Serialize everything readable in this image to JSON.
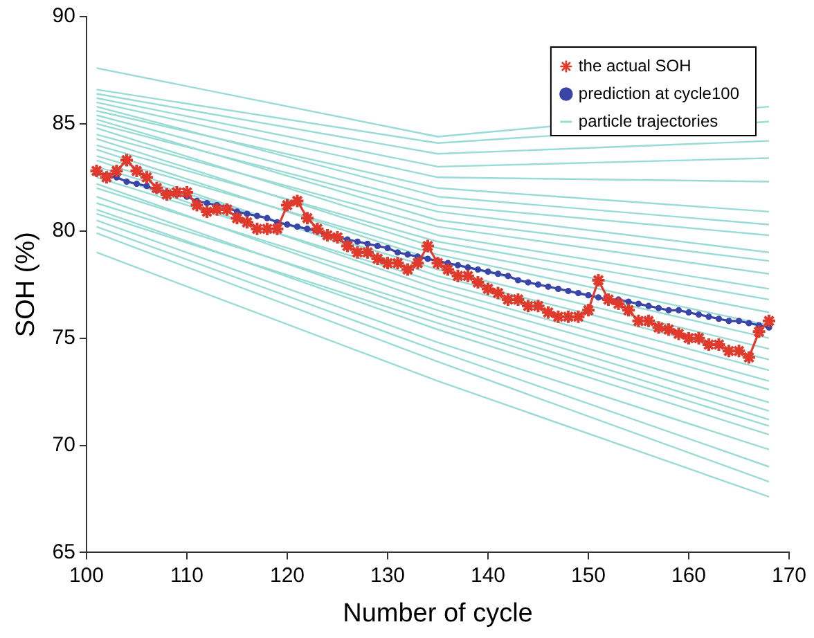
{
  "chart_data": {
    "type": "line",
    "xlabel": "Number of cycle",
    "ylabel": "SOH (%)",
    "xlim": [
      100,
      170
    ],
    "xticks": [
      100,
      110,
      120,
      130,
      140,
      150,
      160,
      170
    ],
    "ylim": [
      65,
      90
    ],
    "yticks": [
      65,
      70,
      75,
      80,
      85,
      90
    ],
    "grid": false,
    "legend": "top right",
    "series": [
      {
        "name": "the actual SOH",
        "color": "#e03a2c",
        "marker": "cross",
        "x": [
          101,
          102,
          103,
          104,
          105,
          106,
          107,
          108,
          109,
          110,
          111,
          112,
          113,
          114,
          115,
          116,
          117,
          118,
          119,
          120,
          121,
          122,
          123,
          124,
          125,
          126,
          127,
          128,
          129,
          130,
          131,
          132,
          133,
          134,
          135,
          136,
          137,
          138,
          139,
          140,
          141,
          142,
          143,
          144,
          145,
          146,
          147,
          148,
          149,
          150,
          151,
          152,
          153,
          154,
          155,
          156,
          157,
          158,
          159,
          160,
          161,
          162,
          163,
          164,
          165,
          166,
          167,
          168
        ],
        "values": [
          82.8,
          82.5,
          82.8,
          83.3,
          82.8,
          82.5,
          82.0,
          81.7,
          81.8,
          81.8,
          81.2,
          80.9,
          81.0,
          81.0,
          80.6,
          80.4,
          80.1,
          80.1,
          80.1,
          81.2,
          81.4,
          80.6,
          80.1,
          79.8,
          79.7,
          79.3,
          79.0,
          79.0,
          78.7,
          78.5,
          78.5,
          78.2,
          78.5,
          79.3,
          78.5,
          78.2,
          77.9,
          77.9,
          77.6,
          77.3,
          77.1,
          76.8,
          76.8,
          76.5,
          76.5,
          76.2,
          76.0,
          76.0,
          76.0,
          76.3,
          77.7,
          76.8,
          76.6,
          76.3,
          75.8,
          75.8,
          75.5,
          75.4,
          75.2,
          75.0,
          75.0,
          74.7,
          74.7,
          74.4,
          74.4,
          74.1,
          75.3,
          75.8
        ]
      },
      {
        "name": "prediction at cycle100",
        "color": "#3a45a8",
        "marker": "circle",
        "x": [
          101,
          102,
          103,
          104,
          105,
          106,
          107,
          108,
          109,
          110,
          111,
          112,
          113,
          114,
          115,
          116,
          117,
          118,
          119,
          120,
          121,
          122,
          123,
          124,
          125,
          126,
          127,
          128,
          129,
          130,
          131,
          132,
          133,
          134,
          135,
          136,
          137,
          138,
          139,
          140,
          141,
          142,
          143,
          144,
          145,
          146,
          147,
          148,
          149,
          150,
          151,
          152,
          153,
          154,
          155,
          156,
          157,
          158,
          159,
          160,
          161,
          162,
          163,
          164,
          165,
          166,
          167,
          168
        ],
        "values": [
          82.7,
          82.6,
          82.5,
          82.3,
          82.2,
          82.1,
          81.9,
          81.8,
          81.7,
          81.6,
          81.4,
          81.3,
          81.2,
          81.1,
          80.9,
          80.8,
          80.7,
          80.6,
          80.4,
          80.3,
          80.2,
          80.1,
          80.0,
          79.8,
          79.7,
          79.6,
          79.5,
          79.4,
          79.3,
          79.2,
          79.0,
          78.9,
          78.8,
          78.7,
          78.6,
          78.5,
          78.4,
          78.3,
          78.2,
          78.1,
          78.0,
          77.9,
          77.7,
          77.6,
          77.5,
          77.4,
          77.3,
          77.2,
          77.1,
          77.0,
          76.9,
          76.8,
          76.8,
          76.7,
          76.6,
          76.5,
          76.4,
          76.3,
          76.3,
          76.2,
          76.1,
          76.0,
          75.9,
          75.8,
          75.8,
          75.7,
          75.6,
          75.5
        ]
      },
      {
        "name": "particle trajectories",
        "color": "#99dcd5",
        "marker": "none",
        "x": [
          101,
          135,
          168
        ],
        "values": [
          87.6,
          84.4,
          85.8
        ]
      },
      {
        "color": "#99dcd5",
        "marker": "none",
        "x": [
          101,
          135,
          168
        ],
        "values": [
          86.6,
          84.1,
          85.1
        ]
      },
      {
        "color": "#99dcd5",
        "marker": "none",
        "x": [
          101,
          135,
          168
        ],
        "values": [
          86.4,
          83.6,
          84.2
        ]
      },
      {
        "color": "#99dcd5",
        "marker": "none",
        "x": [
          101,
          135,
          168
        ],
        "values": [
          86.2,
          83.0,
          83.4
        ]
      },
      {
        "color": "#99dcd5",
        "marker": "none",
        "x": [
          101,
          135,
          168
        ],
        "values": [
          86.0,
          82.5,
          82.3
        ]
      },
      {
        "color": "#99dcd5",
        "marker": "none",
        "x": [
          101,
          135,
          168
        ],
        "values": [
          85.8,
          81.6,
          80.3
        ]
      },
      {
        "color": "#99dcd5",
        "marker": "none",
        "x": [
          101,
          135,
          168
        ],
        "values": [
          85.6,
          82.0,
          80.9
        ]
      },
      {
        "color": "#99dcd5",
        "marker": "none",
        "x": [
          101,
          135,
          168
        ],
        "values": [
          85.4,
          81.2,
          79.8
        ]
      },
      {
        "color": "#99dcd5",
        "marker": "none",
        "x": [
          101,
          135,
          168
        ],
        "values": [
          85.2,
          80.5,
          78.6
        ]
      },
      {
        "color": "#99dcd5",
        "marker": "none",
        "x": [
          101,
          135,
          168
        ],
        "values": [
          85.0,
          80.9,
          79.0
        ]
      },
      {
        "color": "#99dcd5",
        "marker": "none",
        "x": [
          101,
          135,
          168
        ],
        "values": [
          84.8,
          79.8,
          77.3
        ]
      },
      {
        "color": "#99dcd5",
        "marker": "none",
        "x": [
          101,
          135,
          168
        ],
        "values": [
          84.5,
          80.2,
          78.0
        ]
      },
      {
        "color": "#99dcd5",
        "marker": "none",
        "x": [
          101,
          135,
          168
        ],
        "values": [
          84.3,
          79.2,
          76.2
        ]
      },
      {
        "color": "#99dcd5",
        "marker": "none",
        "x": [
          101,
          135,
          168
        ],
        "values": [
          84.0,
          79.5,
          76.8
        ]
      },
      {
        "color": "#99dcd5",
        "marker": "none",
        "x": [
          101,
          135,
          168
        ],
        "values": [
          83.8,
          78.6,
          75.0
        ]
      },
      {
        "color": "#99dcd5",
        "marker": "none",
        "x": [
          101,
          135,
          168
        ],
        "values": [
          83.5,
          78.9,
          75.6
        ]
      },
      {
        "color": "#99dcd5",
        "marker": "none",
        "x": [
          101,
          135,
          168
        ],
        "values": [
          83.3,
          77.9,
          74.0
        ]
      },
      {
        "color": "#99dcd5",
        "marker": "none",
        "x": [
          101,
          135,
          168
        ],
        "values": [
          83.0,
          78.2,
          74.5
        ]
      },
      {
        "color": "#99dcd5",
        "marker": "none",
        "x": [
          101,
          135,
          168
        ],
        "values": [
          82.8,
          77.3,
          73.0
        ]
      },
      {
        "color": "#99dcd5",
        "marker": "none",
        "x": [
          101,
          135,
          168
        ],
        "values": [
          82.5,
          77.6,
          73.5
        ]
      },
      {
        "color": "#99dcd5",
        "marker": "none",
        "x": [
          101,
          135,
          168
        ],
        "values": [
          82.2,
          76.6,
          72.0
        ]
      },
      {
        "color": "#99dcd5",
        "marker": "none",
        "x": [
          101,
          135,
          168
        ],
        "values": [
          82.0,
          77.0,
          72.6
        ]
      },
      {
        "color": "#99dcd5",
        "marker": "none",
        "x": [
          101,
          135,
          168
        ],
        "values": [
          81.6,
          76.0,
          71.2
        ]
      },
      {
        "color": "#99dcd5",
        "marker": "none",
        "x": [
          101,
          135,
          168
        ],
        "values": [
          81.3,
          76.3,
          71.6
        ]
      },
      {
        "color": "#99dcd5",
        "marker": "none",
        "x": [
          101,
          135,
          168
        ],
        "values": [
          81.0,
          75.4,
          70.5
        ]
      },
      {
        "color": "#99dcd5",
        "marker": "none",
        "x": [
          101,
          135,
          168
        ],
        "values": [
          80.8,
          75.7,
          70.9
        ]
      },
      {
        "color": "#99dcd5",
        "marker": "none",
        "x": [
          101,
          135,
          168
        ],
        "values": [
          80.5,
          74.8,
          69.8
        ]
      },
      {
        "color": "#99dcd5",
        "marker": "none",
        "x": [
          101,
          135,
          168
        ],
        "values": [
          80.2,
          74.4,
          69.0
        ]
      },
      {
        "color": "#99dcd5",
        "marker": "none",
        "x": [
          101,
          135,
          168
        ],
        "values": [
          79.9,
          73.9,
          68.3
        ]
      },
      {
        "color": "#99dcd5",
        "marker": "none",
        "x": [
          101,
          135,
          168
        ],
        "values": [
          79.0,
          73.0,
          67.6
        ]
      }
    ]
  }
}
